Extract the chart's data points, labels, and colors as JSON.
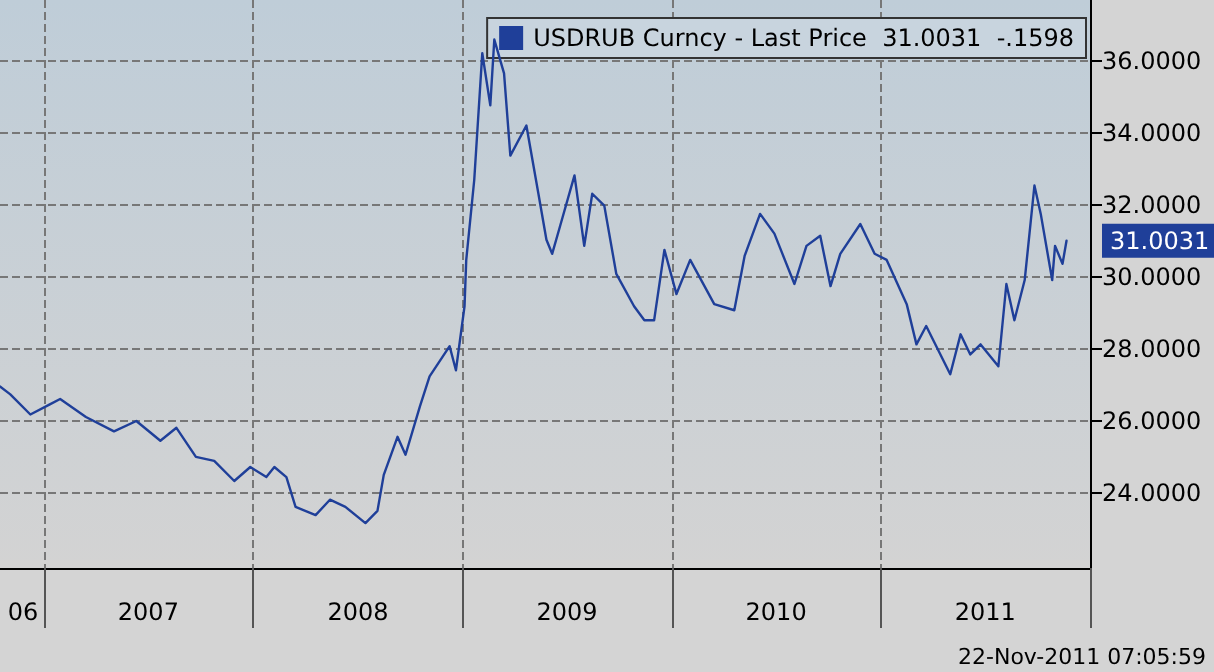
{
  "chart_data": {
    "type": "line",
    "x": [
      "2006-10-16",
      "2006-11-03",
      "2006-12-08",
      "2007-01-11",
      "2007-01-29",
      "2007-03-15",
      "2007-05-03",
      "2007-06-11",
      "2007-07-23",
      "2007-08-20",
      "2007-09-23",
      "2007-10-25",
      "2007-11-29",
      "2007-12-27",
      "2008-01-24",
      "2008-02-07",
      "2008-02-28",
      "2008-03-15",
      "2008-04-19",
      "2008-05-14",
      "2008-06-10",
      "2008-07-15",
      "2008-08-05",
      "2008-08-16",
      "2008-09-09",
      "2008-09-23",
      "2008-10-18",
      "2008-11-04",
      "2008-12-09",
      "2008-12-20",
      "2009-01-04",
      "2009-01-07",
      "2009-01-21",
      "2009-02-04",
      "2009-02-18",
      "2009-02-25",
      "2009-03-14",
      "2009-03-25",
      "2009-04-22",
      "2009-05-13",
      "2009-05-27",
      "2009-06-06",
      "2009-06-20",
      "2009-07-15",
      "2009-08-01",
      "2009-08-15",
      "2009-09-05",
      "2009-09-26",
      "2009-10-27",
      "2009-11-14",
      "2009-12-01",
      "2009-12-19",
      "2010-01-09",
      "2010-02-02",
      "2010-03-16",
      "2010-04-20",
      "2010-05-08",
      "2010-06-04",
      "2010-06-29",
      "2010-08-03",
      "2010-08-24",
      "2010-09-17",
      "2010-10-05",
      "2010-10-22",
      "2010-11-26",
      "2010-12-21",
      "2011-01-11",
      "2011-02-15",
      "2011-03-04",
      "2011-03-21",
      "2011-05-02",
      "2011-05-20",
      "2011-06-06",
      "2011-06-24",
      "2011-07-25",
      "2011-08-08",
      "2011-08-22",
      "2011-09-09",
      "2011-09-26",
      "2011-10-07",
      "2011-10-27",
      "2011-11-01",
      "2011-11-14",
      "2011-11-21"
    ],
    "series": [
      {
        "name": "USDRUB Curncy - Last Price  31.0031  -.1598",
        "color": "#1f3f99",
        "values": [
          26.95,
          26.73,
          26.17,
          26.45,
          26.6,
          26.1,
          25.7,
          25.99,
          25.44,
          25.8,
          24.99,
          24.88,
          24.32,
          24.71,
          24.43,
          24.71,
          24.43,
          23.6,
          23.37,
          23.8,
          23.6,
          23.15,
          23.49,
          24.49,
          25.55,
          25.05,
          26.39,
          27.23,
          28.07,
          27.4,
          29.18,
          30.47,
          32.7,
          36.22,
          34.77,
          36.6,
          35.66,
          33.37,
          34.21,
          32.31,
          31.03,
          30.64,
          31.42,
          32.82,
          30.86,
          32.31,
          31.98,
          30.08,
          29.18,
          28.79,
          28.79,
          30.75,
          29.52,
          30.47,
          29.24,
          29.07,
          30.58,
          31.75,
          31.2,
          29.8,
          30.86,
          31.14,
          29.74,
          30.64,
          31.47,
          30.64,
          30.47,
          29.24,
          28.12,
          28.63,
          27.29,
          28.4,
          27.84,
          28.12,
          27.51,
          29.8,
          28.79,
          29.91,
          32.54,
          31.75,
          29.91,
          30.86,
          30.36,
          31.0031
        ]
      }
    ],
    "xlim": [
      "2006-10-16",
      "2012-01-01"
    ],
    "xticks": [
      {
        "value": "2006-11-25",
        "label": "06"
      },
      {
        "value": "2007-01-01",
        "label": null
      },
      {
        "value": "2007-07-02",
        "label": "2007"
      },
      {
        "value": "2008-01-01",
        "label": null
      },
      {
        "value": "2008-07-02",
        "label": "2008"
      },
      {
        "value": "2009-01-01",
        "label": null
      },
      {
        "value": "2009-07-02",
        "label": "2009"
      },
      {
        "value": "2010-01-01",
        "label": null
      },
      {
        "value": "2010-07-02",
        "label": "2010"
      },
      {
        "value": "2011-01-01",
        "label": null
      },
      {
        "value": "2011-07-02",
        "label": "2011"
      },
      {
        "value": "2012-01-01",
        "label": null
      }
    ],
    "ylim": [
      21.9,
      37.7
    ],
    "yticks": [
      {
        "value": 24,
        "label": "24.0000"
      },
      {
        "value": 26,
        "label": "26.0000"
      },
      {
        "value": 28,
        "label": "28.0000"
      },
      {
        "value": 30,
        "label": "30.0000"
      },
      {
        "value": 32,
        "label": "32.0000"
      },
      {
        "value": 34,
        "label": "34.0000"
      },
      {
        "value": 36,
        "label": "36.0000"
      }
    ],
    "annotations": [
      {
        "text": "31.0031",
        "x": "2011-11-21",
        "y": 31.0031
      },
      "22-Nov-2011 07:05:59"
    ],
    "grid": true,
    "legend": "top right",
    "marker": "none",
    "line_style": "solid"
  }
}
